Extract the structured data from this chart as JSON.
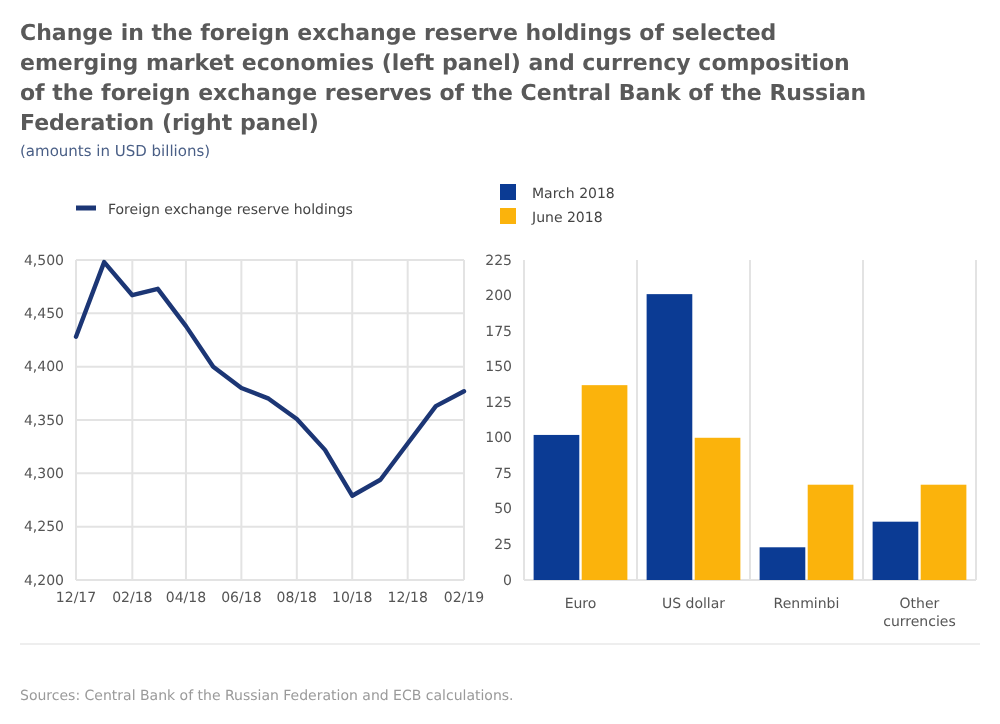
{
  "chart_data": [
    {
      "type": "line",
      "title": "Change in the foreign exchange reserve holdings of selected emerging market economies (left panel) and currency composition of the foreign exchange reserves of the Central Bank of the Russian Federation (right panel)",
      "subtitle": "(amounts in USD billions)",
      "x": [
        "2017-12",
        "2018-01",
        "2018-02",
        "2018-03",
        "2018-04",
        "2018-05",
        "2018-06",
        "2018-07",
        "2018-08",
        "2018-09",
        "2018-10",
        "2018-11",
        "2018-12",
        "2019-01",
        "2019-02"
      ],
      "series": [
        {
          "name": "Foreign exchange reserve holdings",
          "color": "#1c3675",
          "values": [
            4428,
            4498,
            4467,
            4473,
            4438,
            4400,
            4380,
            4370,
            4351,
            4322,
            4279,
            4294,
            4328,
            4363,
            4377
          ]
        }
      ],
      "xlim": [
        "2017-12",
        "2019-02"
      ],
      "xticks": [
        {
          "value": "2017-12",
          "label": "12/17"
        },
        {
          "value": "2018-02",
          "label": "02/18"
        },
        {
          "value": "2018-04",
          "label": "04/18"
        },
        {
          "value": "2018-06",
          "label": "06/18"
        },
        {
          "value": "2018-08",
          "label": "08/18"
        },
        {
          "value": "2018-10",
          "label": "10/18"
        },
        {
          "value": "2018-12",
          "label": "12/18"
        },
        {
          "value": "2019-02",
          "label": "02/19"
        }
      ],
      "ylim": [
        4200,
        4500
      ],
      "yticks": [
        {
          "value": 4200,
          "label": "4,200"
        },
        {
          "value": 4250,
          "label": "4,250"
        },
        {
          "value": 4300,
          "label": "4,300"
        },
        {
          "value": 4350,
          "label": "4,350"
        },
        {
          "value": 4400,
          "label": "4,400"
        },
        {
          "value": 4450,
          "label": "4,450"
        },
        {
          "value": 4500,
          "label": "4,500"
        }
      ],
      "grid": true,
      "legend": "top left",
      "marker": "none",
      "line_style": "solid"
    },
    {
      "type": "bar",
      "categories": [
        "Euro",
        "US dollar",
        "Renminbi",
        "Other currencies"
      ],
      "series": [
        {
          "name": "March 2018",
          "color": "#0b3b94",
          "values": [
            102,
            201,
            23,
            41
          ]
        },
        {
          "name": "June 2018",
          "color": "#fbb30c",
          "values": [
            137,
            100,
            67,
            67
          ]
        }
      ],
      "ylim": [
        0,
        225
      ],
      "yticks": [
        0,
        25,
        50,
        75,
        100,
        125,
        150,
        175,
        200,
        225
      ],
      "grid": "x",
      "legend": "top left",
      "annotations": [
        "Sources: Central Bank of the Russian Federation and ECB calculations."
      ]
    }
  ]
}
